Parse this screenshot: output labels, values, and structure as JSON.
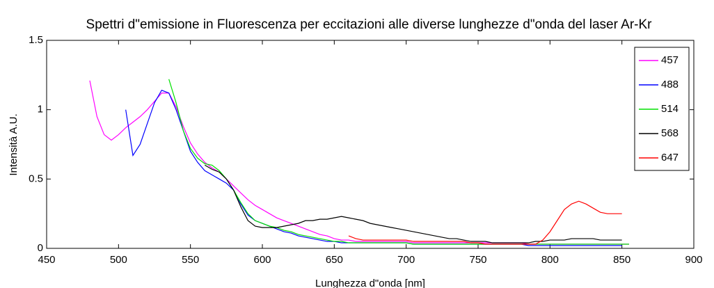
{
  "chart_data": {
    "type": "line",
    "title": "Spettri d\"emissione in Fluorescenza per eccitazioni alle diverse lunghezze d\"onda del laser Ar-Kr",
    "x_label": "Lunghezza d\"onda [nm]",
    "y_label": "Intensità A.U.",
    "xlim": [
      450,
      900
    ],
    "xticks": [
      450,
      500,
      550,
      600,
      650,
      700,
      750,
      800,
      850,
      900
    ],
    "ylim": [
      0,
      1.5
    ],
    "yticks": [
      0,
      0.5,
      1,
      1.5
    ],
    "grid": false,
    "legend": "upper right",
    "x": [
      480,
      485,
      490,
      495,
      500,
      505,
      510,
      515,
      520,
      525,
      530,
      535,
      540,
      545,
      550,
      555,
      560,
      565,
      570,
      575,
      580,
      585,
      590,
      595,
      600,
      605,
      610,
      615,
      620,
      625,
      630,
      635,
      640,
      645,
      650,
      655,
      660,
      665,
      670,
      675,
      680,
      685,
      690,
      695,
      700,
      705,
      710,
      715,
      720,
      725,
      730,
      735,
      740,
      745,
      750,
      755,
      760,
      765,
      770,
      775,
      780,
      785,
      790,
      795,
      800,
      805,
      810,
      815,
      820,
      825,
      830,
      835,
      840,
      845,
      850,
      855
    ],
    "series": [
      {
        "name": "457",
        "color": "#ff00ff",
        "values": [
          1.21,
          0.95,
          0.82,
          0.78,
          0.82,
          0.87,
          0.91,
          0.95,
          1.0,
          1.06,
          1.12,
          1.12,
          1.02,
          0.88,
          0.76,
          0.68,
          0.62,
          0.58,
          0.55,
          0.5,
          0.45,
          0.4,
          0.35,
          0.31,
          0.28,
          0.25,
          0.22,
          0.2,
          0.18,
          0.16,
          0.14,
          0.12,
          0.1,
          0.09,
          0.07,
          0.06,
          0.06,
          0.05,
          0.05,
          0.05,
          0.05,
          0.05,
          0.05,
          0.05,
          0.05,
          0.04,
          0.04,
          0.04,
          0.04,
          0.04,
          0.04,
          0.04,
          0.04,
          0.04,
          0.04,
          0.04,
          0.04,
          0.04,
          0.04,
          0.04,
          0.04,
          0.03,
          0.03,
          0.03,
          0.03,
          0.03,
          0.03,
          0.03,
          0.03,
          0.03,
          0.03,
          0.03,
          0.03,
          0.03,
          0.03,
          0.03
        ]
      },
      {
        "name": "488",
        "color": "#0000ff",
        "values": [
          null,
          null,
          null,
          null,
          null,
          1.0,
          0.67,
          0.75,
          0.9,
          1.05,
          1.14,
          1.12,
          1.0,
          0.85,
          0.7,
          0.62,
          0.56,
          0.53,
          0.5,
          0.47,
          0.42,
          0.32,
          0.24,
          0.2,
          0.18,
          0.16,
          0.14,
          0.12,
          0.11,
          0.09,
          0.08,
          0.07,
          0.06,
          0.05,
          0.05,
          0.04,
          0.04,
          0.04,
          0.04,
          0.04,
          0.04,
          0.04,
          0.04,
          0.04,
          0.04,
          0.03,
          0.03,
          0.03,
          0.03,
          0.03,
          0.03,
          0.03,
          0.03,
          0.03,
          0.03,
          0.03,
          0.03,
          0.03,
          0.03,
          0.03,
          0.03,
          0.02,
          0.02,
          0.02,
          0.02,
          0.02,
          0.02,
          0.02,
          0.02,
          0.02,
          0.02,
          0.02,
          0.02,
          0.02,
          0.02,
          null
        ]
      },
      {
        "name": "514",
        "color": "#00e000",
        "values": [
          null,
          null,
          null,
          null,
          null,
          null,
          null,
          null,
          null,
          null,
          null,
          1.22,
          1.05,
          0.85,
          0.72,
          0.65,
          0.61,
          0.6,
          0.56,
          0.5,
          0.42,
          0.33,
          0.25,
          0.2,
          0.18,
          0.16,
          0.15,
          0.13,
          0.12,
          0.1,
          0.09,
          0.08,
          0.07,
          0.06,
          0.05,
          0.05,
          0.04,
          0.04,
          0.04,
          0.04,
          0.04,
          0.04,
          0.04,
          0.04,
          0.04,
          0.03,
          0.03,
          0.03,
          0.03,
          0.03,
          0.03,
          0.03,
          0.03,
          0.03,
          0.03,
          0.03,
          0.03,
          0.03,
          0.03,
          0.03,
          0.03,
          0.03,
          0.03,
          0.03,
          0.03,
          0.03,
          0.03,
          0.03,
          0.03,
          0.03,
          0.03,
          0.03,
          0.03,
          0.03,
          0.03,
          0.03
        ]
      },
      {
        "name": "568",
        "color": "#000000",
        "values": [
          null,
          null,
          null,
          null,
          null,
          null,
          null,
          null,
          null,
          null,
          null,
          null,
          null,
          null,
          null,
          null,
          0.6,
          0.57,
          0.55,
          0.5,
          0.42,
          0.3,
          0.2,
          0.16,
          0.15,
          0.15,
          0.15,
          0.16,
          0.17,
          0.18,
          0.2,
          0.2,
          0.21,
          0.21,
          0.22,
          0.23,
          0.22,
          0.21,
          0.2,
          0.18,
          0.17,
          0.16,
          0.15,
          0.14,
          0.13,
          0.12,
          0.11,
          0.1,
          0.09,
          0.08,
          0.07,
          0.07,
          0.06,
          0.05,
          0.05,
          0.05,
          0.04,
          0.04,
          0.04,
          0.04,
          0.04,
          0.04,
          0.05,
          0.05,
          0.06,
          0.06,
          0.06,
          0.07,
          0.07,
          0.07,
          0.07,
          0.06,
          0.06,
          0.06,
          0.06,
          null
        ]
      },
      {
        "name": "647",
        "color": "#ff0000",
        "values": [
          null,
          null,
          null,
          null,
          null,
          null,
          null,
          null,
          null,
          null,
          null,
          null,
          null,
          null,
          null,
          null,
          null,
          null,
          null,
          null,
          null,
          null,
          null,
          null,
          null,
          null,
          null,
          null,
          null,
          null,
          null,
          null,
          null,
          null,
          null,
          null,
          0.09,
          0.07,
          0.06,
          0.06,
          0.06,
          0.06,
          0.06,
          0.06,
          0.06,
          0.05,
          0.05,
          0.05,
          0.05,
          0.05,
          0.05,
          0.05,
          0.05,
          0.04,
          0.04,
          0.03,
          0.03,
          0.03,
          0.03,
          0.03,
          0.03,
          0.03,
          0.03,
          0.06,
          0.12,
          0.2,
          0.28,
          0.32,
          0.34,
          0.32,
          0.29,
          0.26,
          0.25,
          0.25,
          0.25,
          null
        ]
      }
    ]
  }
}
